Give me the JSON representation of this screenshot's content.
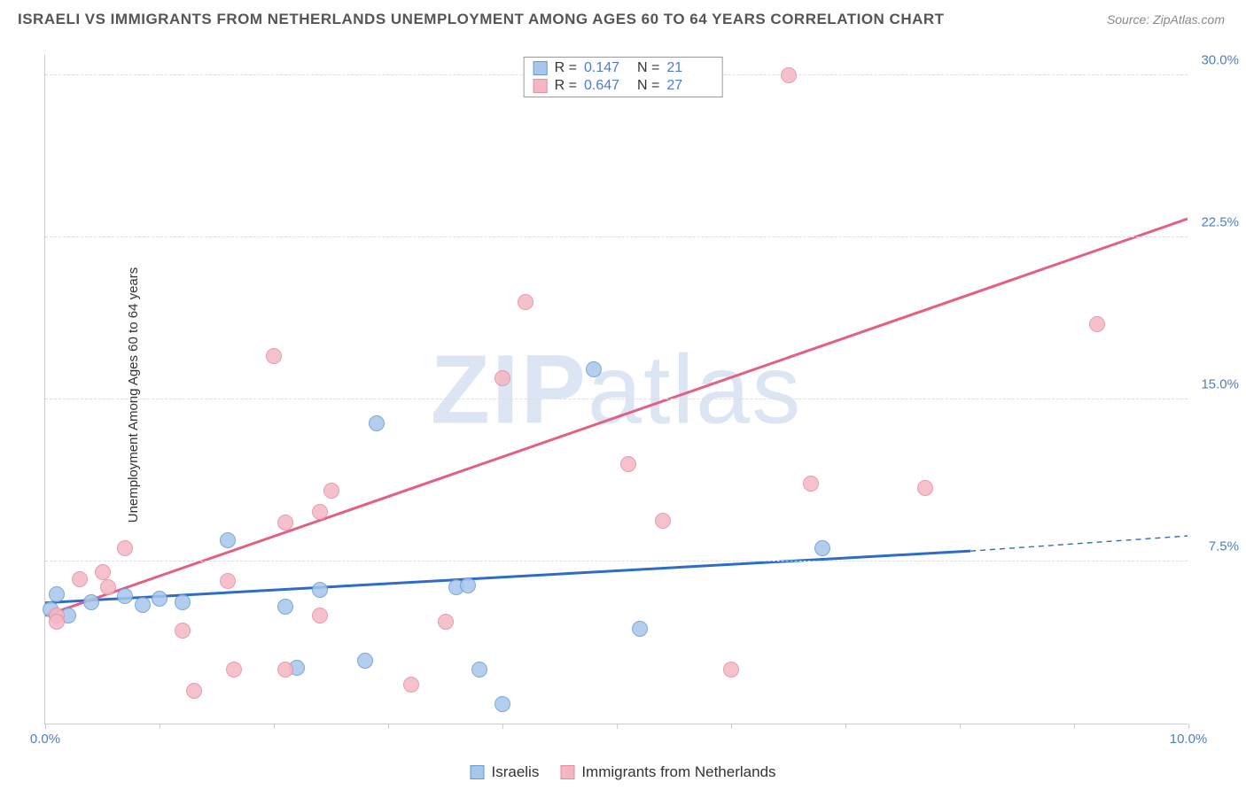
{
  "chart": {
    "type": "scatter",
    "title": "ISRAELI VS IMMIGRANTS FROM NETHERLANDS UNEMPLOYMENT AMONG AGES 60 TO 64 YEARS CORRELATION CHART",
    "source": "Source: ZipAtlas.com",
    "ylabel": "Unemployment Among Ages 60 to 64 years",
    "watermark": "ZIPatlas",
    "background_color": "#ffffff",
    "grid_color": "#dddddd",
    "axis_color": "#cccccc",
    "label_color": "#4a7ecc",
    "xlim": [
      0,
      10
    ],
    "ylim": [
      0,
      31
    ],
    "xticks": [
      0,
      1,
      2,
      3,
      4,
      5,
      6,
      7,
      8,
      9,
      10
    ],
    "xtick_labels": {
      "0": "0.0%",
      "10": "10.0%"
    },
    "yticks": [
      7.5,
      15.0,
      22.5,
      30.0
    ],
    "ytick_labels": [
      "7.5%",
      "15.0%",
      "22.5%",
      "30.0%"
    ],
    "marker_radius": 9,
    "marker_stroke_width": 1.4,
    "trend_line_width": 3,
    "series": [
      {
        "name": "Israelis",
        "fill_color": "#a7c7ea",
        "stroke_color": "#6699d8",
        "line_color": "#2e6cc9",
        "R": "0.147",
        "N": "21",
        "trend": {
          "x1": 0.0,
          "y1": 5.6,
          "x2": 8.1,
          "y2": 8.0,
          "dash_x2": 10.0,
          "dash_y2": 8.7
        },
        "points": [
          [
            0.05,
            5.3
          ],
          [
            0.1,
            6.0
          ],
          [
            0.2,
            5.0
          ],
          [
            0.4,
            5.6
          ],
          [
            0.7,
            5.9
          ],
          [
            0.85,
            5.5
          ],
          [
            1.0,
            5.8
          ],
          [
            1.2,
            5.6
          ],
          [
            1.6,
            8.5
          ],
          [
            2.1,
            5.4
          ],
          [
            2.2,
            2.6
          ],
          [
            2.4,
            6.2
          ],
          [
            2.8,
            2.9
          ],
          [
            2.9,
            13.9
          ],
          [
            3.6,
            6.3
          ],
          [
            3.7,
            6.4
          ],
          [
            3.8,
            2.5
          ],
          [
            4.0,
            0.9
          ],
          [
            4.8,
            16.4
          ],
          [
            5.2,
            4.4
          ],
          [
            6.8,
            8.1
          ]
        ]
      },
      {
        "name": "Immigrants from Netherlands",
        "fill_color": "#f3b7c4",
        "stroke_color": "#e88ba0",
        "line_color": "#e36083",
        "R": "0.647",
        "N": "27",
        "trend": {
          "x1": 0.0,
          "y1": 5.0,
          "x2": 10.0,
          "y2": 23.4,
          "dash_x2": null,
          "dash_y2": null
        },
        "points": [
          [
            0.1,
            5.0
          ],
          [
            0.1,
            4.7
          ],
          [
            0.3,
            6.7
          ],
          [
            0.5,
            7.0
          ],
          [
            0.55,
            6.3
          ],
          [
            0.7,
            8.1
          ],
          [
            1.2,
            4.3
          ],
          [
            1.3,
            1.5
          ],
          [
            1.6,
            6.6
          ],
          [
            1.65,
            2.5
          ],
          [
            2.0,
            17.0
          ],
          [
            2.1,
            9.3
          ],
          [
            2.4,
            9.8
          ],
          [
            2.1,
            2.5
          ],
          [
            2.4,
            5.0
          ],
          [
            2.5,
            10.8
          ],
          [
            3.2,
            1.8
          ],
          [
            3.5,
            4.7
          ],
          [
            4.0,
            16.0
          ],
          [
            4.2,
            19.5
          ],
          [
            5.1,
            12.0
          ],
          [
            5.4,
            9.4
          ],
          [
            6.0,
            2.5
          ],
          [
            6.7,
            11.1
          ],
          [
            6.5,
            30.0
          ],
          [
            7.7,
            10.9
          ],
          [
            9.2,
            18.5
          ]
        ]
      }
    ]
  }
}
